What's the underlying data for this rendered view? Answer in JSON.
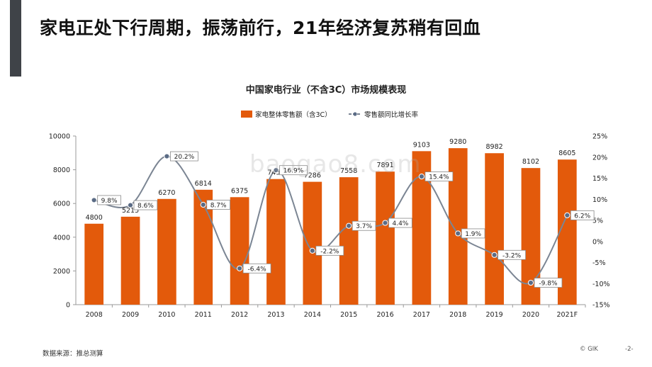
{
  "slide": {
    "title": "家电正处下行周期，振荡前行，21年经济复苏稍有回血",
    "source": "数据来源：推总测算",
    "copyright": "© GIK",
    "page": "-2-",
    "watermark": "baogao8.com"
  },
  "colors": {
    "bar": "#e35a0b",
    "line": "#7b8593",
    "marker": "#5a6b85",
    "accent": "#3f4348"
  },
  "chart_data": {
    "type": "bar",
    "title": "中国家电行业（不含3C）市场规模表现",
    "categories": [
      "2008",
      "2009",
      "2010",
      "2011",
      "2012",
      "2013",
      "2014",
      "2015",
      "2016",
      "2017",
      "2018",
      "2019",
      "2020",
      "2021F"
    ],
    "series": [
      {
        "name": "家电整体零售额（含3C）",
        "type": "bar",
        "axis": "left",
        "values": [
          4800,
          5215,
          6270,
          6814,
          6375,
          7450,
          7286,
          7558,
          7891,
          9103,
          9280,
          8982,
          8102,
          8605
        ],
        "labels": [
          "4800",
          "5215",
          "6270",
          "6814",
          "6375",
          "7450",
          "7286",
          "7558",
          "7891",
          "9103",
          "9280",
          "8982",
          "8102",
          "8605"
        ]
      },
      {
        "name": "零售额同比增长率",
        "type": "line",
        "axis": "right",
        "values": [
          9.8,
          8.6,
          20.2,
          8.7,
          -6.4,
          16.9,
          -2.2,
          3.7,
          4.4,
          15.4,
          1.9,
          -3.2,
          -9.8,
          6.2
        ],
        "labels": [
          "9.8%",
          "8.6%",
          "20.2%",
          "8.7%",
          "-6.4%",
          "16.9%",
          "-2.2%",
          "3.7%",
          "4.4%",
          "15.4%",
          "1.9%",
          "-3.2%",
          "-9.8%",
          "6.2%"
        ]
      }
    ],
    "y_left": {
      "min": 0,
      "max": 10000,
      "ticks": [
        "0",
        "2000",
        "4000",
        "6000",
        "8000",
        "10000"
      ]
    },
    "y_right": {
      "min": -15,
      "max": 25,
      "ticks": [
        "-15%",
        "-10%",
        "-5%",
        "0%",
        "5%",
        "10%",
        "15%",
        "20%",
        "25%"
      ]
    },
    "grid": false,
    "legend_position": "top"
  }
}
